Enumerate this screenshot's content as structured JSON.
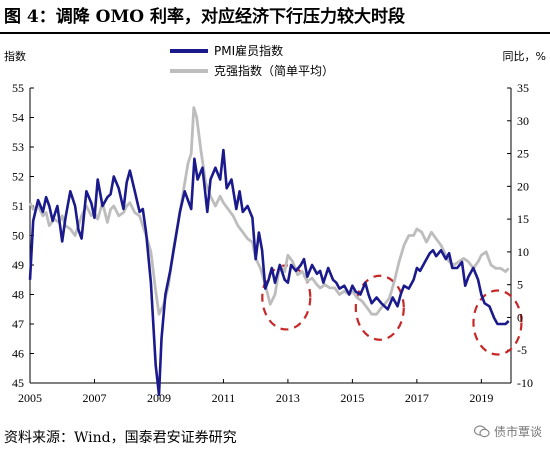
{
  "page": {
    "title": "图 4：调降 OMO 利率，对应经济下行压力较大时段",
    "source": "资料来源：Wind，国泰君安证券研究",
    "watermark": "债市覃谈"
  },
  "chart_data": {
    "type": "line",
    "ylabel_left": "指数",
    "ylabel_right": "同比，%",
    "x_ticks": [
      "2005",
      "2007",
      "2009",
      "2011",
      "2013",
      "2015",
      "2017",
      "2019"
    ],
    "xlim": [
      2005.0,
      2019.92
    ],
    "ylim_left": [
      45,
      55
    ],
    "ylim_right": [
      -10,
      35
    ],
    "yticks_left": [
      45,
      46,
      47,
      48,
      49,
      50,
      51,
      52,
      53,
      54,
      55
    ],
    "yticks_right": [
      -10,
      -5,
      0,
      5,
      10,
      15,
      20,
      25,
      30,
      35
    ],
    "legend_position": "top-center",
    "series": [
      {
        "name": "PMI雇员指数",
        "axis": "left",
        "color": "#1a1a8c",
        "x": [
          2005.0,
          2005.1,
          2005.25,
          2005.4,
          2005.5,
          2005.6,
          2005.7,
          2005.85,
          2006.0,
          2006.1,
          2006.25,
          2006.4,
          2006.5,
          2006.6,
          2006.75,
          2006.9,
          2007.0,
          2007.1,
          2007.25,
          2007.4,
          2007.5,
          2007.6,
          2007.75,
          2007.9,
          2008.0,
          2008.1,
          2008.25,
          2008.4,
          2008.5,
          2008.6,
          2008.75,
          2008.9,
          2009.0,
          2009.08,
          2009.2,
          2009.35,
          2009.5,
          2009.65,
          2009.8,
          2010.0,
          2010.1,
          2010.2,
          2010.35,
          2010.5,
          2010.6,
          2010.75,
          2010.9,
          2011.0,
          2011.1,
          2011.25,
          2011.4,
          2011.5,
          2011.6,
          2011.75,
          2011.9,
          2012.0,
          2012.1,
          2012.2,
          2012.3,
          2012.4,
          2012.5,
          2012.6,
          2012.75,
          2012.9,
          2013.0,
          2013.1,
          2013.25,
          2013.4,
          2013.5,
          2013.6,
          2013.75,
          2013.9,
          2014.0,
          2014.1,
          2014.25,
          2014.4,
          2014.5,
          2014.6,
          2014.75,
          2014.9,
          2015.0,
          2015.1,
          2015.25,
          2015.4,
          2015.5,
          2015.6,
          2015.75,
          2015.9,
          2016.0,
          2016.1,
          2016.25,
          2016.4,
          2016.5,
          2016.6,
          2016.75,
          2016.9,
          2017.0,
          2017.1,
          2017.25,
          2017.4,
          2017.5,
          2017.6,
          2017.75,
          2017.9,
          2018.0,
          2018.1,
          2018.25,
          2018.4,
          2018.5,
          2018.6,
          2018.75,
          2018.9,
          2019.0,
          2019.1,
          2019.25,
          2019.4,
          2019.5,
          2019.6,
          2019.75,
          2019.85
        ],
        "values": [
          48.5,
          50.5,
          51.2,
          50.8,
          51.3,
          51.0,
          50.5,
          51.0,
          49.8,
          50.6,
          51.5,
          51.0,
          50.2,
          49.9,
          51.5,
          51.1,
          50.6,
          51.9,
          51.0,
          51.3,
          51.4,
          52.0,
          51.6,
          50.9,
          51.8,
          52.2,
          51.5,
          50.8,
          50.9,
          50.1,
          48.4,
          45.6,
          44.6,
          46.5,
          48.0,
          48.8,
          49.8,
          50.8,
          51.5,
          50.9,
          52.6,
          51.9,
          52.3,
          50.8,
          51.9,
          52.3,
          51.9,
          52.9,
          51.6,
          51.9,
          50.9,
          51.5,
          50.8,
          51.0,
          50.6,
          49.2,
          50.1,
          49.5,
          48.2,
          48.5,
          48.9,
          48.4,
          49.0,
          48.5,
          48.4,
          49.0,
          48.8,
          49.0,
          49.2,
          48.6,
          49.0,
          48.7,
          48.8,
          48.4,
          48.9,
          48.5,
          48.4,
          48.2,
          48.3,
          48.0,
          48.3,
          48.1,
          48.0,
          48.4,
          48.0,
          47.7,
          47.9,
          47.7,
          47.6,
          47.5,
          47.9,
          47.6,
          48.0,
          48.3,
          48.2,
          48.5,
          48.9,
          48.8,
          49.1,
          49.4,
          49.5,
          49.3,
          49.5,
          49.2,
          49.4,
          48.9,
          48.9,
          49.1,
          48.3,
          48.6,
          48.9,
          48.5,
          48.0,
          47.7,
          47.6,
          47.2,
          47.0,
          47.0,
          47.0,
          47.1
        ]
      },
      {
        "name": "克强指数（简单平均）",
        "axis": "right",
        "color": "#bdbdbd",
        "x": [
          2005.0,
          2005.1,
          2005.25,
          2005.4,
          2005.5,
          2005.6,
          2005.75,
          2005.9,
          2006.0,
          2006.1,
          2006.25,
          2006.4,
          2006.5,
          2006.6,
          2006.75,
          2006.9,
          2007.0,
          2007.1,
          2007.25,
          2007.4,
          2007.5,
          2007.6,
          2007.75,
          2007.9,
          2008.0,
          2008.1,
          2008.25,
          2008.4,
          2008.5,
          2008.6,
          2008.75,
          2008.9,
          2009.0,
          2009.15,
          2009.3,
          2009.45,
          2009.6,
          2009.75,
          2009.9,
          2010.0,
          2010.08,
          2010.17,
          2010.3,
          2010.45,
          2010.6,
          2010.75,
          2010.9,
          2011.0,
          2011.15,
          2011.3,
          2011.45,
          2011.6,
          2011.75,
          2011.9,
          2012.0,
          2012.15,
          2012.3,
          2012.45,
          2012.6,
          2012.75,
          2012.9,
          2013.0,
          2013.15,
          2013.3,
          2013.45,
          2013.6,
          2013.75,
          2013.9,
          2014.0,
          2014.15,
          2014.3,
          2014.45,
          2014.6,
          2014.75,
          2014.9,
          2015.0,
          2015.15,
          2015.3,
          2015.45,
          2015.6,
          2015.75,
          2015.9,
          2016.0,
          2016.15,
          2016.3,
          2016.45,
          2016.6,
          2016.75,
          2016.9,
          2017.0,
          2017.15,
          2017.3,
          2017.45,
          2017.6,
          2017.75,
          2017.9,
          2018.0,
          2018.15,
          2018.3,
          2018.45,
          2018.6,
          2018.75,
          2018.9,
          2019.0,
          2019.15,
          2019.3,
          2019.45,
          2019.6,
          2019.75,
          2019.85
        ],
        "values": [
          17.5,
          16.5,
          17.0,
          15.5,
          16.0,
          14.0,
          15.0,
          14.5,
          15.5,
          14.0,
          13.5,
          12.5,
          14.0,
          15.5,
          17.0,
          15.5,
          16.0,
          15.0,
          17.5,
          14.5,
          16.5,
          17.0,
          15.5,
          16.0,
          17.0,
          17.5,
          16.0,
          15.5,
          14.0,
          12.5,
          10.0,
          4.0,
          0.5,
          2.0,
          5.0,
          10.5,
          14.5,
          19.0,
          23.5,
          25.0,
          32.0,
          30.5,
          25.5,
          20.5,
          18.5,
          17.0,
          18.5,
          17.5,
          16.5,
          15.5,
          14.0,
          13.0,
          12.0,
          11.5,
          9.0,
          7.5,
          5.0,
          2.0,
          3.5,
          8.0,
          7.0,
          9.5,
          8.5,
          6.5,
          7.0,
          5.5,
          6.0,
          5.0,
          4.5,
          5.0,
          4.5,
          4.5,
          3.5,
          4.0,
          3.5,
          4.0,
          3.0,
          2.5,
          1.5,
          0.5,
          0.5,
          1.5,
          2.0,
          3.0,
          5.5,
          8.5,
          11.0,
          12.5,
          12.5,
          13.5,
          13.0,
          11.5,
          13.0,
          12.0,
          11.0,
          9.5,
          8.5,
          8.0,
          8.5,
          9.0,
          8.5,
          7.5,
          8.5,
          9.5,
          10.0,
          8.0,
          7.5,
          7.5,
          7.0,
          7.5
        ]
      }
    ]
  }
}
